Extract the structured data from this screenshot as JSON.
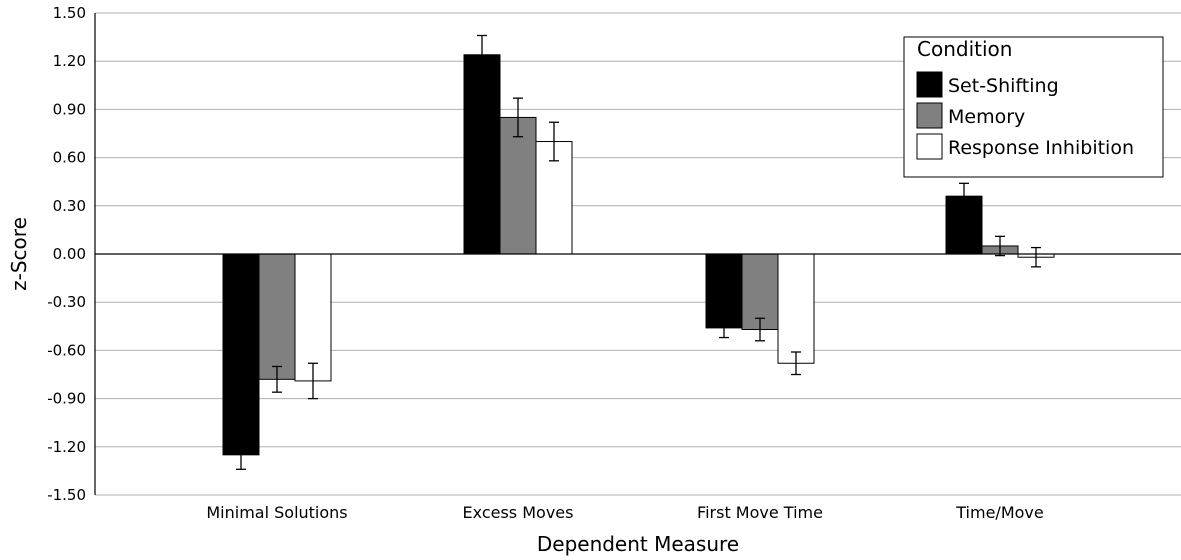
{
  "chart_data": {
    "type": "bar",
    "title": "",
    "xlabel": "Dependent Measure",
    "ylabel": "z-Score",
    "ylim": [
      -1.5,
      1.5
    ],
    "yticks": [
      "1.50",
      "1.20",
      "0.90",
      "0.60",
      "0.30",
      "0.00",
      "-0.30",
      "-0.60",
      "-0.90",
      "-1.20",
      "-1.50"
    ],
    "ytick_values": [
      1.5,
      1.2,
      0.9,
      0.6,
      0.3,
      0.0,
      -0.3,
      -0.6,
      -0.9,
      -1.2,
      -1.5
    ],
    "grid": true,
    "legend": {
      "title": "Condition",
      "placement": "top-right"
    },
    "categories": [
      "Minimal Solutions",
      "Excess Moves",
      "First Move Time",
      "Time/Move"
    ],
    "series": [
      {
        "name": "Set-Shifting",
        "color": "#000000",
        "values": [
          -1.25,
          1.24,
          -0.46,
          0.36
        ],
        "errors": [
          0.09,
          0.12,
          0.06,
          0.08
        ]
      },
      {
        "name": "Memory",
        "color": "#808080",
        "values": [
          -0.78,
          0.85,
          -0.47,
          0.05
        ],
        "errors": [
          0.08,
          0.12,
          0.07,
          0.06
        ]
      },
      {
        "name": "Response Inhibition",
        "color": "#ffffff",
        "values": [
          -0.79,
          0.7,
          -0.68,
          -0.02
        ],
        "errors": [
          0.11,
          0.12,
          0.07,
          0.06
        ]
      }
    ]
  }
}
